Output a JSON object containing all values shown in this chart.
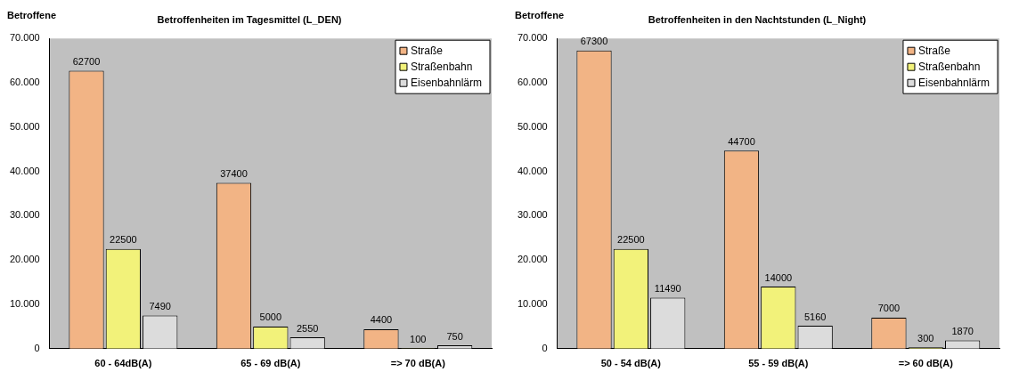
{
  "chart_data": [
    {
      "type": "bar",
      "title": "Betroffenheiten im Tagesmittel (L_DEN)",
      "ylabel": "Betroffene",
      "categories": [
        "60 - 64dB(A)",
        "65 - 69 dB(A)",
        "=> 70 dB(A)"
      ],
      "series": [
        {
          "name": "Straße",
          "color": "#f2b485",
          "values": [
            62700,
            37400,
            4400
          ]
        },
        {
          "name": "Straßenbahn",
          "color": "#f2f27a",
          "values": [
            22500,
            5000,
            100
          ]
        },
        {
          "name": "Eisenbahnlärm",
          "color": "#dcdcdc",
          "values": [
            7490,
            2550,
            750
          ]
        }
      ],
      "ylim": [
        0,
        70000
      ],
      "yticks": [
        {
          "value": 0,
          "label": "0"
        },
        {
          "value": 10000,
          "label": "10.000"
        },
        {
          "value": 20000,
          "label": "20.000"
        },
        {
          "value": 30000,
          "label": "30.000"
        },
        {
          "value": 40000,
          "label": "40.000"
        },
        {
          "value": 50000,
          "label": "50.000"
        },
        {
          "value": 60000,
          "label": "60.000"
        },
        {
          "value": 70000,
          "label": "70.000"
        }
      ],
      "data_labels": true,
      "legend": "top right",
      "grid": false
    },
    {
      "type": "bar",
      "title": "Betroffenheiten in den Nachtstunden (L_Night)",
      "ylabel": "Betroffene",
      "categories": [
        "50 - 54 dB(A)",
        "55 - 59 dB(A)",
        "=> 60 dB(A)"
      ],
      "series": [
        {
          "name": "Straße",
          "color": "#f2b485",
          "values": [
            67300,
            44700,
            7000
          ]
        },
        {
          "name": "Straßenbahn",
          "color": "#f2f27a",
          "values": [
            22500,
            14000,
            300
          ]
        },
        {
          "name": "Eisenbahnlärm",
          "color": "#dcdcdc",
          "values": [
            11490,
            5160,
            1870
          ]
        }
      ],
      "ylim": [
        0,
        70000
      ],
      "yticks": [
        {
          "value": 0,
          "label": "0"
        },
        {
          "value": 10000,
          "label": "10.000"
        },
        {
          "value": 20000,
          "label": "20.000"
        },
        {
          "value": 30000,
          "label": "30.000"
        },
        {
          "value": 40000,
          "label": "40.000"
        },
        {
          "value": 50000,
          "label": "50.000"
        },
        {
          "value": 60000,
          "label": "60.000"
        },
        {
          "value": 70000,
          "label": "70.000"
        }
      ],
      "data_labels": true,
      "legend": "top right",
      "grid": false
    }
  ]
}
